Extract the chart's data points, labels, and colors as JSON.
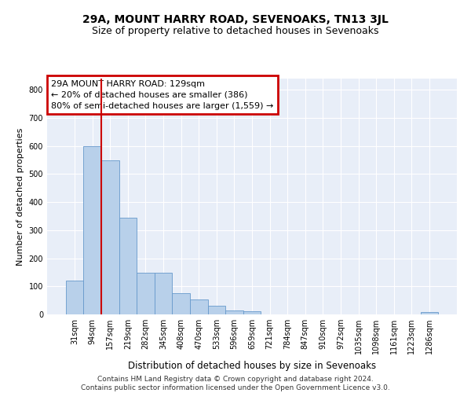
{
  "title": "29A, MOUNT HARRY ROAD, SEVENOAKS, TN13 3JL",
  "subtitle": "Size of property relative to detached houses in Sevenoaks",
  "xlabel": "Distribution of detached houses by size in Sevenoaks",
  "ylabel": "Number of detached properties",
  "categories": [
    "31sqm",
    "94sqm",
    "157sqm",
    "219sqm",
    "282sqm",
    "345sqm",
    "408sqm",
    "470sqm",
    "533sqm",
    "596sqm",
    "659sqm",
    "721sqm",
    "784sqm",
    "847sqm",
    "910sqm",
    "972sqm",
    "1035sqm",
    "1098sqm",
    "1161sqm",
    "1223sqm",
    "1286sqm"
  ],
  "values": [
    120,
    600,
    550,
    345,
    148,
    148,
    75,
    52,
    32,
    15,
    10,
    0,
    0,
    0,
    0,
    0,
    0,
    0,
    0,
    0,
    8
  ],
  "bar_color": "#b8d0ea",
  "bar_edge_color": "#6699cc",
  "background_color": "#e8eef8",
  "grid_color": "#ffffff",
  "annotation_text": "29A MOUNT HARRY ROAD: 129sqm\n← 20% of detached houses are smaller (386)\n80% of semi-detached houses are larger (1,559) →",
  "annotation_box_color": "#cc0000",
  "vline_color": "#cc0000",
  "ylim_max": 840,
  "ytick_step": 100,
  "footer": "Contains HM Land Registry data © Crown copyright and database right 2024.\nContains public sector information licensed under the Open Government Licence v3.0.",
  "title_fontsize": 10,
  "subtitle_fontsize": 9,
  "xlabel_fontsize": 8.5,
  "ylabel_fontsize": 8,
  "tick_fontsize": 7,
  "annotation_fontsize": 8,
  "footer_fontsize": 6.5
}
